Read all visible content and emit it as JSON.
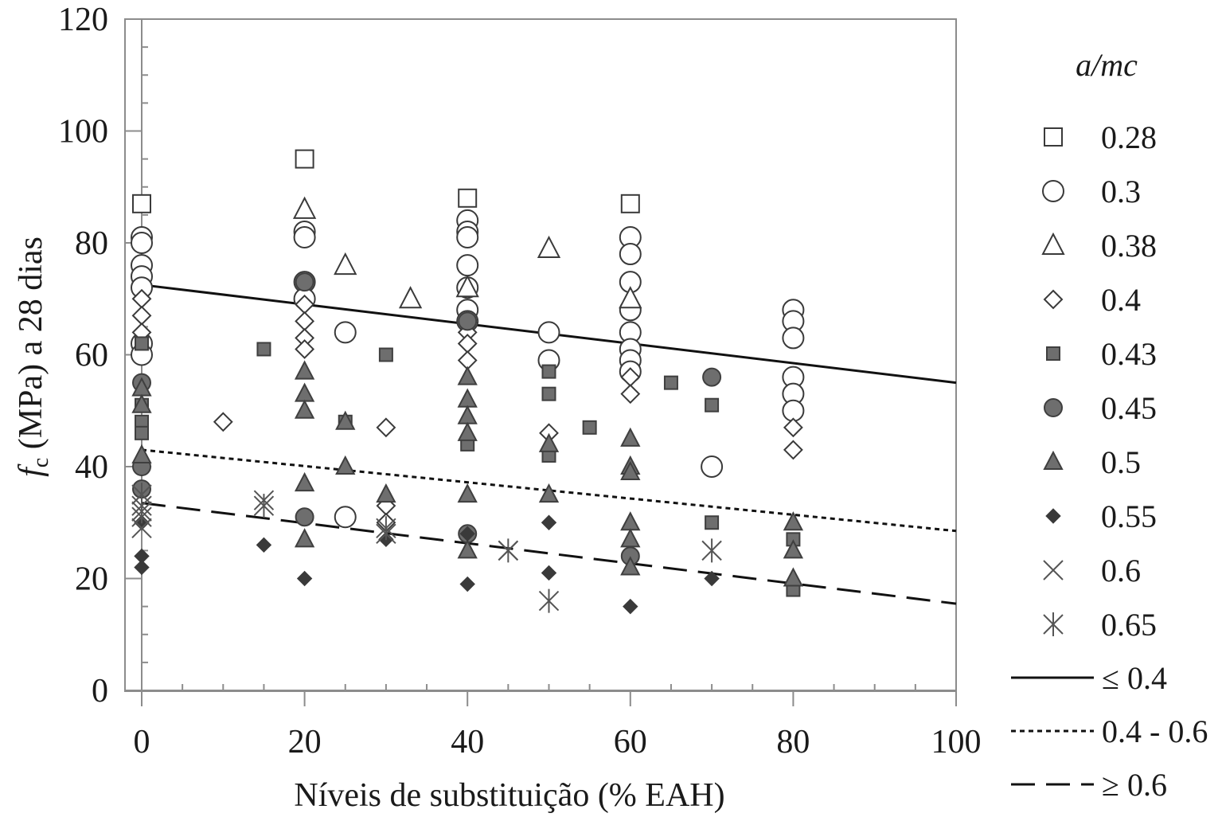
{
  "chart_data": {
    "type": "scatter",
    "xlabel": "Níveis de substituição (% EAH)",
    "ylabel_symbol": "f",
    "ylabel_subscript": "c",
    "ylabel_rest": " (MPa) a 28 dias",
    "xlim": [
      0,
      100
    ],
    "ylim": [
      0,
      120
    ],
    "x_ticks": [
      "0",
      "20",
      "40",
      "60",
      "80",
      "100"
    ],
    "y_ticks": [
      "0",
      "20",
      "40",
      "60",
      "80",
      "100",
      "120"
    ],
    "grid": false,
    "legend_position": "right",
    "legend_title": "a/mc",
    "series": [
      {
        "name": "0.28",
        "marker": "square-open",
        "points": [
          [
            0,
            87
          ],
          [
            20,
            95
          ],
          [
            40,
            88
          ],
          [
            60,
            87
          ]
        ]
      },
      {
        "name": "0.3",
        "marker": "circle-open",
        "points": [
          [
            0,
            81
          ],
          [
            0,
            80
          ],
          [
            0,
            76
          ],
          [
            0,
            74
          ],
          [
            0,
            72
          ],
          [
            0,
            62
          ],
          [
            0,
            60
          ],
          [
            20,
            82
          ],
          [
            20,
            81
          ],
          [
            20,
            73
          ],
          [
            20,
            70
          ],
          [
            25,
            64
          ],
          [
            25,
            31
          ],
          [
            40,
            84
          ],
          [
            40,
            82
          ],
          [
            40,
            81
          ],
          [
            40,
            76
          ],
          [
            40,
            72
          ],
          [
            40,
            68
          ],
          [
            40,
            66
          ],
          [
            50,
            64
          ],
          [
            50,
            59
          ],
          [
            60,
            81
          ],
          [
            60,
            78
          ],
          [
            60,
            73
          ],
          [
            60,
            68
          ],
          [
            60,
            64
          ],
          [
            60,
            61
          ],
          [
            60,
            59
          ],
          [
            60,
            57
          ],
          [
            70,
            40
          ],
          [
            80,
            68
          ],
          [
            80,
            66
          ],
          [
            80,
            63
          ],
          [
            80,
            56
          ],
          [
            80,
            53
          ],
          [
            80,
            50
          ]
        ]
      },
      {
        "name": "0.38",
        "marker": "triangle-open",
        "points": [
          [
            20,
            86
          ],
          [
            25,
            76
          ],
          [
            33,
            70
          ],
          [
            40,
            72
          ],
          [
            50,
            79
          ],
          [
            60,
            70
          ]
        ]
      },
      {
        "name": "0.4",
        "marker": "diamond-open",
        "points": [
          [
            0,
            70
          ],
          [
            0,
            67
          ],
          [
            0,
            64
          ],
          [
            0,
            40
          ],
          [
            10,
            48
          ],
          [
            20,
            69
          ],
          [
            20,
            66
          ],
          [
            20,
            63
          ],
          [
            20,
            61
          ],
          [
            30,
            47
          ],
          [
            30,
            33
          ],
          [
            30,
            30
          ],
          [
            40,
            64
          ],
          [
            40,
            62
          ],
          [
            40,
            59
          ],
          [
            50,
            46
          ],
          [
            60,
            56
          ],
          [
            60,
            53
          ],
          [
            80,
            47
          ],
          [
            80,
            43
          ]
        ]
      },
      {
        "name": "0.43",
        "marker": "square-filled",
        "points": [
          [
            0,
            62
          ],
          [
            0,
            51
          ],
          [
            0,
            48
          ],
          [
            0,
            46
          ],
          [
            15,
            61
          ],
          [
            25,
            48
          ],
          [
            30,
            60
          ],
          [
            40,
            44
          ],
          [
            50,
            57
          ],
          [
            50,
            53
          ],
          [
            50,
            42
          ],
          [
            55,
            47
          ],
          [
            65,
            55
          ],
          [
            70,
            51
          ],
          [
            70,
            30
          ],
          [
            80,
            27
          ],
          [
            80,
            18
          ]
        ]
      },
      {
        "name": "0.45",
        "marker": "circle-filled",
        "points": [
          [
            0,
            55
          ],
          [
            0,
            40
          ],
          [
            0,
            36
          ],
          [
            20,
            73
          ],
          [
            20,
            31
          ],
          [
            40,
            66
          ],
          [
            40,
            28
          ],
          [
            60,
            24
          ],
          [
            70,
            56
          ]
        ]
      },
      {
        "name": "0.5",
        "marker": "triangle-filled",
        "points": [
          [
            0,
            54
          ],
          [
            0,
            51
          ],
          [
            0,
            42
          ],
          [
            20,
            57
          ],
          [
            20,
            53
          ],
          [
            20,
            50
          ],
          [
            20,
            37
          ],
          [
            20,
            27
          ],
          [
            25,
            40
          ],
          [
            25,
            48
          ],
          [
            30,
            35
          ],
          [
            40,
            56
          ],
          [
            40,
            52
          ],
          [
            40,
            49
          ],
          [
            40,
            46
          ],
          [
            40,
            35
          ],
          [
            40,
            25
          ],
          [
            50,
            44
          ],
          [
            50,
            35
          ],
          [
            60,
            45
          ],
          [
            60,
            40
          ],
          [
            60,
            39
          ],
          [
            60,
            30
          ],
          [
            60,
            27
          ],
          [
            60,
            22
          ],
          [
            80,
            30
          ],
          [
            80,
            25
          ],
          [
            80,
            20
          ]
        ]
      },
      {
        "name": "0.55",
        "marker": "diamond-filled",
        "points": [
          [
            0,
            30
          ],
          [
            0,
            24
          ],
          [
            0,
            22
          ],
          [
            15,
            26
          ],
          [
            20,
            20
          ],
          [
            30,
            27
          ],
          [
            40,
            28
          ],
          [
            40,
            19
          ],
          [
            50,
            30
          ],
          [
            50,
            21
          ],
          [
            60,
            15
          ],
          [
            70,
            20
          ]
        ]
      },
      {
        "name": "0.6",
        "marker": "x",
        "points": [
          [
            0,
            33
          ],
          [
            0,
            31
          ],
          [
            0,
            29
          ],
          [
            15,
            34
          ],
          [
            30,
            28
          ],
          [
            45,
            25
          ]
        ]
      },
      {
        "name": "0.65",
        "marker": "asterisk",
        "points": [
          [
            0,
            35
          ],
          [
            0,
            32
          ],
          [
            15,
            33
          ],
          [
            30,
            29
          ],
          [
            45,
            25
          ],
          [
            50,
            16
          ],
          [
            70,
            25
          ]
        ]
      }
    ],
    "trend_lines": [
      {
        "name": "≤ 0.4",
        "style": "solid",
        "points": [
          [
            0,
            72.5
          ],
          [
            100,
            55
          ]
        ]
      },
      {
        "name": "0.4 - 0.6",
        "style": "dotted",
        "points": [
          [
            0,
            43
          ],
          [
            100,
            28.5
          ]
        ]
      },
      {
        "name": "≥ 0.6",
        "style": "dashed",
        "points": [
          [
            0,
            33.5
          ],
          [
            100,
            15.5
          ]
        ]
      }
    ]
  }
}
